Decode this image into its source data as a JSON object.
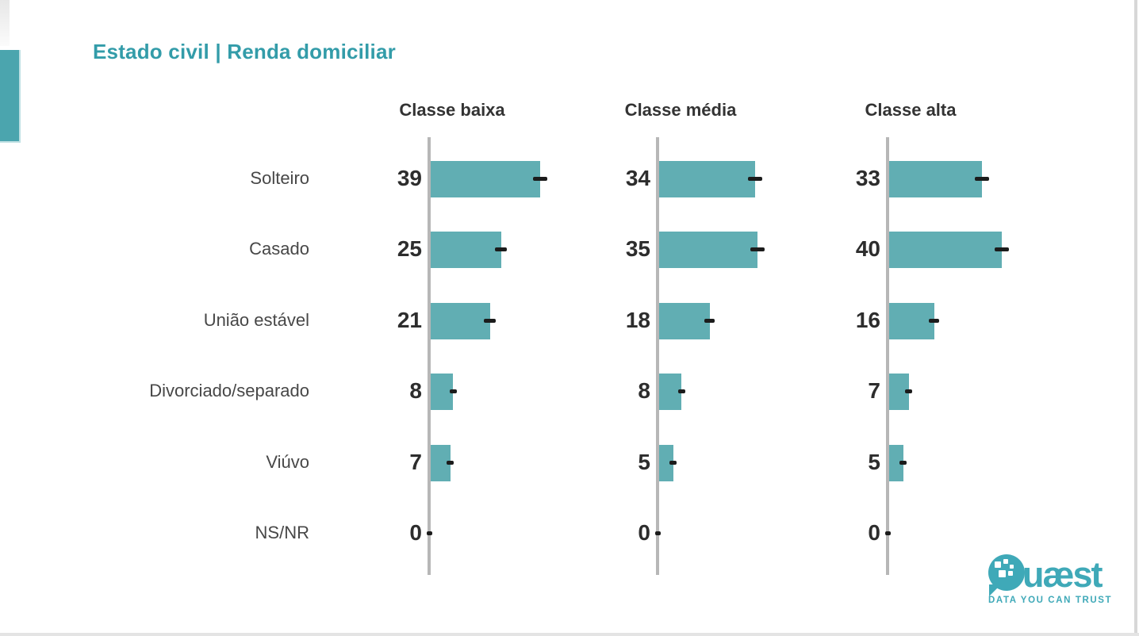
{
  "page": {
    "title": "Estado civil | Renda domiciliar"
  },
  "logo": {
    "name": "Quæst",
    "text_rest": "uæst",
    "tagline": "DATA YOU CAN TRUST"
  },
  "chart_data": {
    "type": "bar",
    "orientation": "horizontal",
    "panels_note": "three small-multiple panels sharing one category axis",
    "categories": [
      "Solteiro",
      "Casado",
      "União estável",
      "Divorciado/separado",
      "Viúvo",
      "NS/NR"
    ],
    "series": [
      {
        "name": "Classe baixa",
        "values": [
          39,
          25,
          21,
          8,
          7,
          0
        ]
      },
      {
        "name": "Classe média",
        "values": [
          34,
          35,
          18,
          8,
          5,
          0
        ]
      },
      {
        "name": "Classe alta",
        "values": [
          33,
          40,
          16,
          7,
          5,
          0
        ]
      }
    ],
    "value_labels_shown": true,
    "error_interval_marks": true,
    "xlim": [
      0,
      45
    ],
    "grid": false,
    "legend": "none",
    "colors": {
      "bar": "#61AEB3",
      "axis": "#B7B7B7",
      "error_mark": "#1C1C1C",
      "title": "#339CA9",
      "panel_header": "#333333",
      "category_label": "#474747",
      "value_label": "#2D2D2D",
      "accent_tab": "#4BA5AE",
      "logo": "#3FA9B8"
    }
  }
}
